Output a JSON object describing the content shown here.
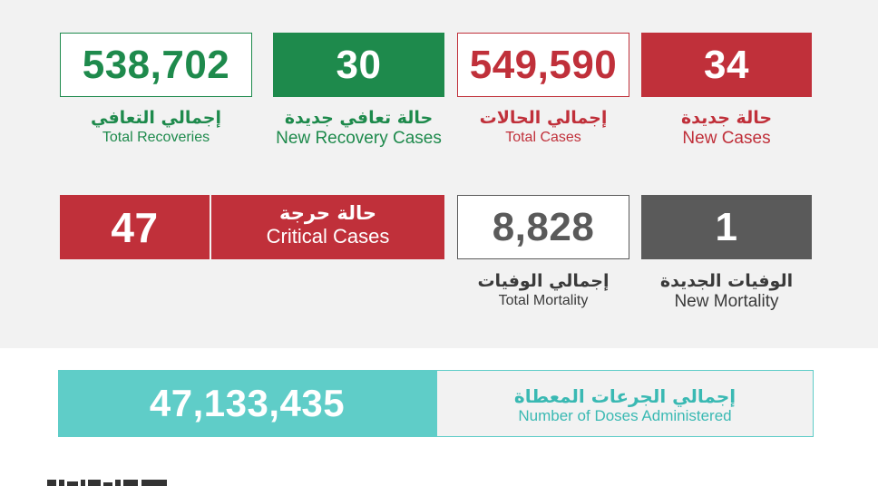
{
  "stats": {
    "total_recoveries": {
      "value": "538,702",
      "label_ar": "إجمالي التعافي",
      "label_en": "Total Recoveries"
    },
    "new_recovery": {
      "value": "30",
      "label_ar": "حالة تعافي جديدة",
      "label_en": "New Recovery Cases"
    },
    "total_cases": {
      "value": "549,590",
      "label_ar": "إجمالي الحالات",
      "label_en": "Total Cases"
    },
    "new_cases": {
      "value": "34",
      "label_ar": "حالة جديدة",
      "label_en": "New Cases"
    },
    "critical": {
      "value": "47",
      "label_ar": "حالة حرجة",
      "label_en": "Critical Cases"
    },
    "total_mortality": {
      "value": "8,828",
      "label_ar": "إجمالي الوفيات",
      "label_en": "Total Mortality"
    },
    "new_mortality": {
      "value": "1",
      "label_ar": "الوفيات الجديدة",
      "label_en": "New Mortality"
    }
  },
  "doses": {
    "value": "47,133,435",
    "label_ar": "إجمالي الجرعات المعطاة",
    "label_en": "Number of Doses Administered"
  },
  "colors": {
    "green": "#1e8a4c",
    "red": "#c0303a",
    "gray": "#5a5a5a",
    "teal": "#5fcdc8",
    "background": "#f2f2f2"
  }
}
